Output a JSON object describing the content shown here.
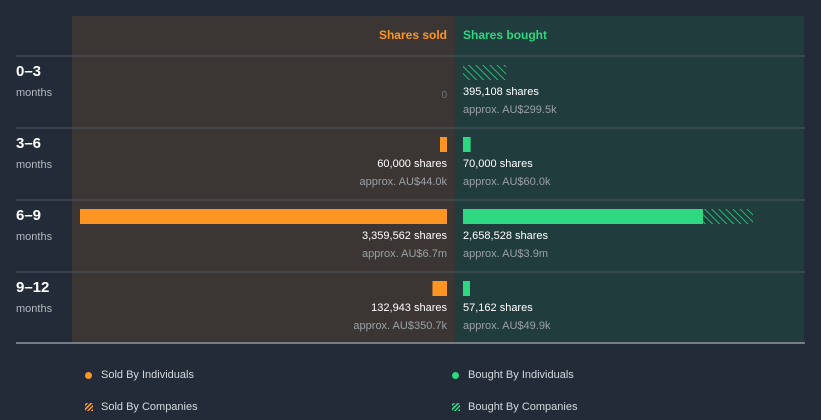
{
  "chart_data": {
    "type": "bar",
    "orientation": "horizontal-diverging",
    "headers": {
      "sold": "Shares sold",
      "bought": "Shares bought"
    },
    "periods": [
      {
        "label": "0–3",
        "unit": "months"
      },
      {
        "label": "3–6",
        "unit": "months"
      },
      {
        "label": "6–9",
        "unit": "months"
      },
      {
        "label": "9–12",
        "unit": "months"
      }
    ],
    "sold": [
      {
        "individuals": 0,
        "companies": 0,
        "shares_label": "0",
        "approx_label": ""
      },
      {
        "individuals": 60000,
        "companies": 0,
        "shares_label": "60,000 shares",
        "approx_label": "approx. AU$44.0k"
      },
      {
        "individuals": 3359562,
        "companies": 0,
        "shares_label": "3,359,562 shares",
        "approx_label": "approx. AU$6.7m"
      },
      {
        "individuals": 132943,
        "companies": 0,
        "shares_label": "132,943 shares",
        "approx_label": "approx. AU$350.7k"
      }
    ],
    "bought": [
      {
        "individuals": 0,
        "companies": 395108,
        "shares_label": "395,108 shares",
        "approx_label": "approx. AU$299.5k"
      },
      {
        "individuals": 70000,
        "companies": 0,
        "shares_label": "70,000 shares",
        "approx_label": "approx. AU$60.0k"
      },
      {
        "individuals": 2200000,
        "companies": 458528,
        "shares_label": "2,658,528 shares",
        "approx_label": "approx. AU$3.9m"
      },
      {
        "individuals": 57162,
        "companies": 0,
        "shares_label": "57,162 shares",
        "approx_label": "approx. AU$49.9k"
      }
    ],
    "legend": {
      "sold_individuals": "Sold By Individuals",
      "bought_individuals": "Bought By Individuals",
      "sold_companies": "Sold By Companies",
      "bought_companies": "Bought By Companies"
    },
    "colors": {
      "sold": "#fe9523",
      "bought": "#2dd880",
      "sold_panel": "#3b3634",
      "bought_panel": "#203c3c",
      "background": "#232b38"
    }
  }
}
